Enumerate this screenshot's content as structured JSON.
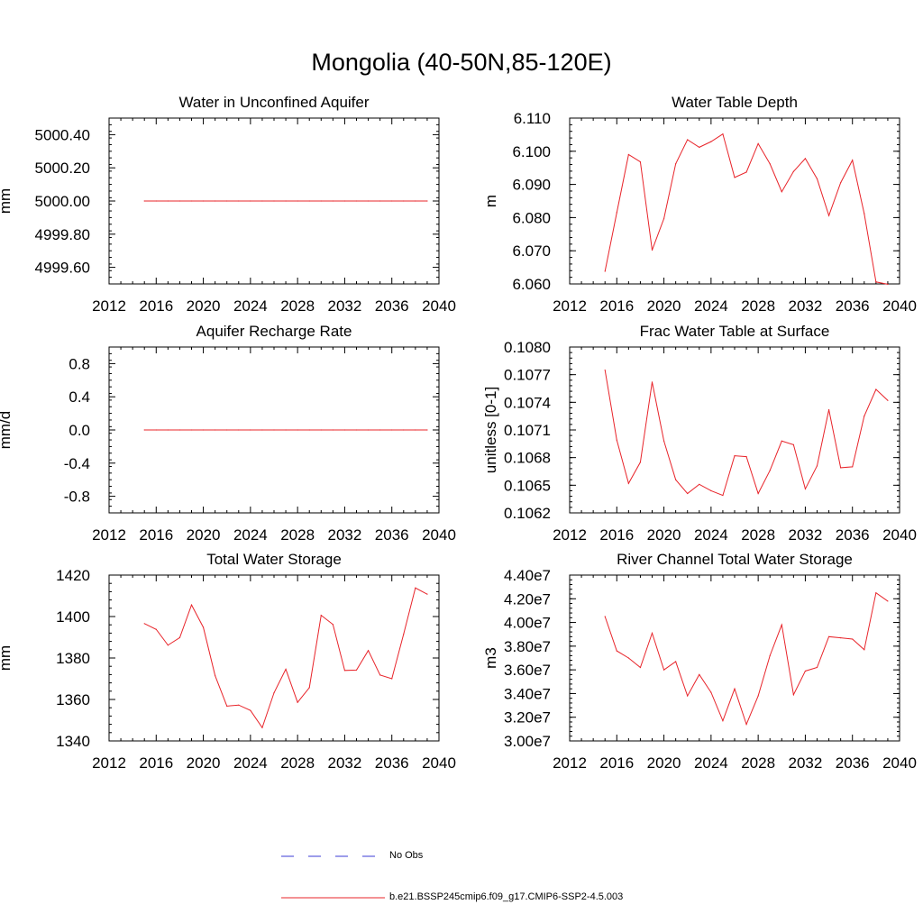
{
  "figure": {
    "title": "Mongolia (40-50N,85-120E)"
  },
  "legend": {
    "items": [
      {
        "label": "No Obs",
        "color": "#3b3bd6",
        "style": "dashed"
      },
      {
        "label": "b.e21.BSSP245cmip6.f09_g17.CMIP6-SSP2-4.5.003",
        "color": "#e8242a",
        "style": "solid"
      }
    ]
  },
  "colors": {
    "series": "#e8242a",
    "axis": "#000000"
  },
  "chart_data": [
    {
      "type": "line",
      "title": "Water in Unconfined Aquifer",
      "ylabel": "mm",
      "xlim": [
        2012,
        2040
      ],
      "ylim": [
        4999.5,
        5000.5
      ],
      "xticks": [
        "2012",
        "2016",
        "2020",
        "2024",
        "2028",
        "2032",
        "2036",
        "2040"
      ],
      "yticks": [
        "4999.60",
        "4999.80",
        "5000.00",
        "5000.20",
        "5000.40"
      ],
      "ytick_values": [
        4999.6,
        4999.8,
        5000.0,
        5000.2,
        5000.4
      ],
      "x": [
        2015,
        2016,
        2017,
        2018,
        2019,
        2020,
        2021,
        2022,
        2023,
        2024,
        2025,
        2026,
        2027,
        2028,
        2029,
        2030,
        2031,
        2032,
        2033,
        2034,
        2035,
        2036,
        2037,
        2038,
        2039
      ],
      "values": [
        5000,
        5000,
        5000,
        5000,
        5000,
        5000,
        5000,
        5000,
        5000,
        5000,
        5000,
        5000,
        5000,
        5000,
        5000,
        5000,
        5000,
        5000,
        5000,
        5000,
        5000,
        5000,
        5000,
        5000,
        5000
      ]
    },
    {
      "type": "line",
      "title": "Water Table Depth",
      "ylabel": "m",
      "xlim": [
        2012,
        2040
      ],
      "ylim": [
        6.06,
        6.11
      ],
      "xticks": [
        "2012",
        "2016",
        "2020",
        "2024",
        "2028",
        "2032",
        "2036",
        "2040"
      ],
      "yticks": [
        "6.060",
        "6.070",
        "6.080",
        "6.090",
        "6.100",
        "6.110"
      ],
      "ytick_values": [
        6.06,
        6.07,
        6.08,
        6.09,
        6.1,
        6.11
      ],
      "x": [
        2015,
        2016,
        2017,
        2018,
        2019,
        2020,
        2021,
        2022,
        2023,
        2024,
        2025,
        2026,
        2027,
        2028,
        2029,
        2030,
        2031,
        2032,
        2033,
        2034,
        2035,
        2036,
        2037,
        2038,
        2039
      ],
      "values": [
        6.0638,
        6.0815,
        6.099,
        6.0968,
        6.0702,
        6.0797,
        6.0962,
        6.1035,
        6.1012,
        6.1029,
        6.1052,
        6.0921,
        6.0937,
        6.1023,
        6.0962,
        6.0878,
        6.0939,
        6.0978,
        6.0917,
        6.0806,
        6.0905,
        6.0973,
        6.0812,
        6.0606,
        6.0599
      ]
    },
    {
      "type": "line",
      "title": "Aquifer Recharge Rate",
      "ylabel": "mm/d",
      "xlim": [
        2012,
        2040
      ],
      "ylim": [
        -1.0,
        1.0
      ],
      "xticks": [
        "2012",
        "2016",
        "2020",
        "2024",
        "2028",
        "2032",
        "2036",
        "2040"
      ],
      "yticks": [
        "-0.8",
        "-0.4",
        "0.0",
        "0.4",
        "0.8"
      ],
      "ytick_values": [
        -0.8,
        -0.4,
        0.0,
        0.4,
        0.8
      ],
      "x": [
        2015,
        2016,
        2017,
        2018,
        2019,
        2020,
        2021,
        2022,
        2023,
        2024,
        2025,
        2026,
        2027,
        2028,
        2029,
        2030,
        2031,
        2032,
        2033,
        2034,
        2035,
        2036,
        2037,
        2038,
        2039
      ],
      "values": [
        0,
        0,
        0,
        0,
        0,
        0,
        0,
        0,
        0,
        0,
        0,
        0,
        0,
        0,
        0,
        0,
        0,
        0,
        0,
        0,
        0,
        0,
        0,
        0,
        0
      ]
    },
    {
      "type": "line",
      "title": "Frac Water Table at Surface",
      "ylabel": "unitless [0-1]",
      "xlim": [
        2012,
        2040
      ],
      "ylim": [
        0.1062,
        0.108
      ],
      "xticks": [
        "2012",
        "2016",
        "2020",
        "2024",
        "2028",
        "2032",
        "2036",
        "2040"
      ],
      "yticks": [
        "0.1062",
        "0.1065",
        "0.1068",
        "0.1071",
        "0.1074",
        "0.1077",
        "0.1080"
      ],
      "ytick_values": [
        0.1062,
        0.1065,
        0.1068,
        0.1071,
        0.1074,
        0.1077,
        0.108
      ],
      "x": [
        2015,
        2016,
        2017,
        2018,
        2019,
        2020,
        2021,
        2022,
        2023,
        2024,
        2025,
        2026,
        2027,
        2028,
        2029,
        2030,
        2031,
        2032,
        2033,
        2034,
        2035,
        2036,
        2037,
        2038,
        2039
      ],
      "values": [
        0.10775,
        0.10699,
        0.10652,
        0.10675,
        0.10762,
        0.10698,
        0.10656,
        0.10641,
        0.10651,
        0.10644,
        0.10639,
        0.10682,
        0.10681,
        0.10641,
        0.10666,
        0.10698,
        0.10694,
        0.10646,
        0.10671,
        0.10732,
        0.10669,
        0.1067,
        0.10725,
        0.10754,
        0.10742
      ]
    },
    {
      "type": "line",
      "title": "Total Water Storage",
      "ylabel": "mm",
      "xlim": [
        2012,
        2040
      ],
      "ylim": [
        1340,
        1420
      ],
      "xticks": [
        "2012",
        "2016",
        "2020",
        "2024",
        "2028",
        "2032",
        "2036",
        "2040"
      ],
      "yticks": [
        "1340",
        "1360",
        "1380",
        "1400",
        "1420"
      ],
      "ytick_values": [
        1340,
        1360,
        1380,
        1400,
        1420
      ],
      "x": [
        2015,
        2016,
        2017,
        2018,
        2019,
        2020,
        2021,
        2022,
        2023,
        2024,
        2025,
        2026,
        2027,
        2028,
        2029,
        2030,
        2031,
        2032,
        2033,
        2034,
        2035,
        2036,
        2037,
        2038,
        2039
      ],
      "values": [
        1396.6,
        1393.8,
        1386.2,
        1389.8,
        1405.6,
        1394.8,
        1371.5,
        1356.8,
        1357.3,
        1354.7,
        1346.4,
        1363.2,
        1374.6,
        1358.6,
        1365.7,
        1400.6,
        1396.2,
        1374.0,
        1374.2,
        1383.6,
        1371.8,
        1370.0,
        1391.5,
        1413.8,
        1410.8
      ]
    },
    {
      "type": "line",
      "title": "River Channel Total Water Storage",
      "ylabel": "m3",
      "xlim": [
        2012,
        2040
      ],
      "ylim": [
        30000000,
        44000000
      ],
      "xticks": [
        "2012",
        "2016",
        "2020",
        "2024",
        "2028",
        "2032",
        "2036",
        "2040"
      ],
      "yticks": [
        "3.00e7",
        "3.20e7",
        "3.40e7",
        "3.60e7",
        "3.80e7",
        "4.00e7",
        "4.20e7",
        "4.40e7"
      ],
      "ytick_values": [
        30000000,
        32000000,
        34000000,
        36000000,
        38000000,
        40000000,
        42000000,
        44000000
      ],
      "x": [
        2015,
        2016,
        2017,
        2018,
        2019,
        2020,
        2021,
        2022,
        2023,
        2024,
        2025,
        2026,
        2027,
        2028,
        2029,
        2030,
        2031,
        2032,
        2033,
        2034,
        2035,
        2036,
        2037,
        2038,
        2039
      ],
      "values": [
        40500000,
        37600000,
        37000000,
        36200000,
        39100000,
        36000000,
        36700000,
        33800000,
        35600000,
        34100000,
        31700000,
        34400000,
        31400000,
        33800000,
        37200000,
        39800000,
        33900000,
        35900000,
        36200000,
        38800000,
        38700000,
        38600000,
        37700000,
        42500000,
        41800000
      ]
    }
  ]
}
